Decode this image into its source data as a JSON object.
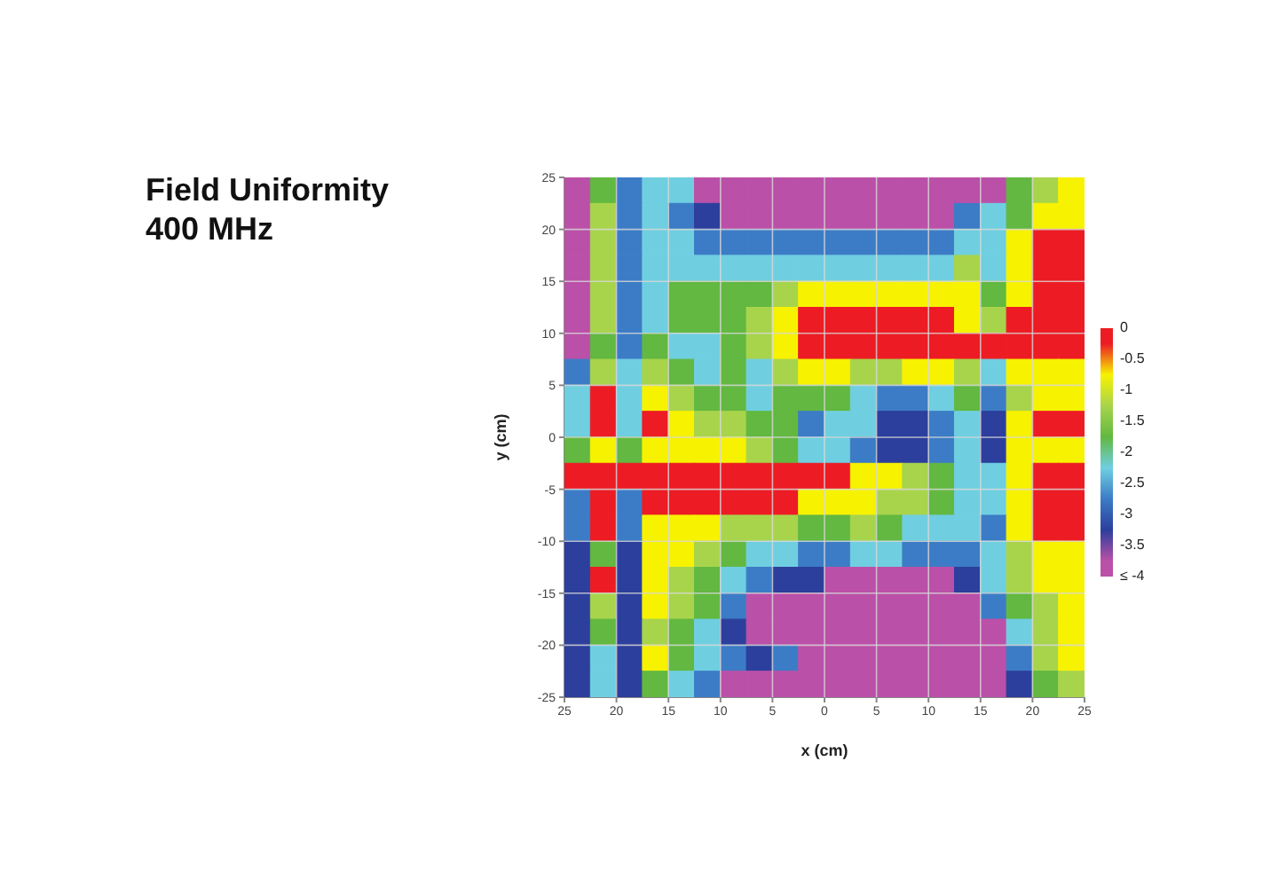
{
  "chart_data": {
    "type": "heatmap",
    "title": "Field Uniformity\n400 MHz",
    "xlabel": "x (cm)",
    "ylabel": "y (cm)",
    "x": [
      -23.75,
      -21.25,
      -18.75,
      -16.25,
      -13.75,
      -11.25,
      -8.75,
      -6.25,
      -3.75,
      -1.25,
      1.25,
      3.75,
      6.25,
      8.75,
      11.25,
      13.75,
      16.25,
      18.75,
      21.25,
      23.75
    ],
    "y": [
      23.75,
      21.25,
      18.75,
      16.25,
      13.75,
      11.25,
      8.75,
      6.25,
      3.75,
      1.25,
      -1.25,
      -3.75,
      -6.25,
      -8.75,
      -11.25,
      -13.75,
      -16.25,
      -18.75,
      -21.25,
      -23.75
    ],
    "cells": [
      [
        -3.75,
        -1.75,
        -2.75,
        -2.25,
        -2.25,
        -3.75,
        -3.75,
        -3.75,
        -3.75,
        -3.75,
        -3.75,
        -3.75,
        -3.75,
        -3.75,
        -3.75,
        -3.75,
        -3.75,
        -1.75,
        -1.25,
        -0.75
      ],
      [
        -3.75,
        -1.25,
        -2.75,
        -2.25,
        -2.75,
        -3.25,
        -3.75,
        -3.75,
        -3.75,
        -3.75,
        -3.75,
        -3.75,
        -3.75,
        -3.75,
        -3.75,
        -2.75,
        -2.25,
        -1.75,
        -0.75,
        -0.75
      ],
      [
        -3.75,
        -1.25,
        -2.75,
        -2.25,
        -2.25,
        -2.75,
        -2.75,
        -2.75,
        -2.75,
        -2.75,
        -2.75,
        -2.75,
        -2.75,
        -2.75,
        -2.75,
        -2.25,
        -2.25,
        -0.75,
        -0.25,
        -0.25
      ],
      [
        -3.75,
        -1.25,
        -2.75,
        -2.25,
        -2.25,
        -2.25,
        -2.25,
        -2.25,
        -2.25,
        -2.25,
        -2.25,
        -2.25,
        -2.25,
        -2.25,
        -2.25,
        -1.25,
        -2.25,
        -0.75,
        -0.25,
        -0.25
      ],
      [
        -3.75,
        -1.25,
        -2.75,
        -2.25,
        -1.75,
        -1.75,
        -1.75,
        -1.75,
        -1.25,
        -0.75,
        -0.75,
        -0.75,
        -0.75,
        -0.75,
        -0.75,
        -0.75,
        -1.75,
        -0.75,
        -0.25,
        -0.25
      ],
      [
        -3.75,
        -1.25,
        -2.75,
        -2.25,
        -1.75,
        -1.75,
        -1.75,
        -1.25,
        -0.75,
        -0.25,
        -0.25,
        -0.25,
        -0.25,
        -0.25,
        -0.25,
        -0.75,
        -1.25,
        -0.25,
        -0.25,
        -0.25
      ],
      [
        -3.75,
        -1.75,
        -2.75,
        -1.75,
        -2.25,
        -2.25,
        -1.75,
        -1.25,
        -0.75,
        -0.25,
        -0.25,
        -0.25,
        -0.25,
        -0.25,
        -0.25,
        -0.25,
        -0.25,
        -0.25,
        -0.25,
        -0.25
      ],
      [
        -2.75,
        -1.25,
        -2.25,
        -1.25,
        -1.75,
        -2.25,
        -1.75,
        -2.25,
        -1.25,
        -0.75,
        -0.75,
        -1.25,
        -1.25,
        -0.75,
        -0.75,
        -1.25,
        -2.25,
        -0.75,
        -0.75,
        -0.75
      ],
      [
        -2.25,
        -0.25,
        -2.25,
        -0.75,
        -1.25,
        -1.75,
        -1.75,
        -2.25,
        -1.75,
        -1.75,
        -1.75,
        -2.25,
        -2.75,
        -2.75,
        -2.25,
        -1.75,
        -2.75,
        -1.25,
        -0.75,
        -0.75
      ],
      [
        -2.25,
        -0.25,
        -2.25,
        -0.25,
        -0.75,
        -1.25,
        -1.25,
        -1.75,
        -1.75,
        -2.75,
        -2.25,
        -2.25,
        -3.25,
        -3.25,
        -2.75,
        -2.25,
        -3.25,
        -0.75,
        -0.25,
        -0.25
      ],
      [
        -1.75,
        -0.75,
        -1.75,
        -0.75,
        -0.75,
        -0.75,
        -0.75,
        -1.25,
        -1.75,
        -2.25,
        -2.25,
        -2.75,
        -3.25,
        -3.25,
        -2.75,
        -2.25,
        -3.25,
        -0.75,
        -0.75,
        -0.75
      ],
      [
        -0.25,
        -0.25,
        -0.25,
        -0.25,
        -0.25,
        -0.25,
        -0.25,
        -0.25,
        -0.25,
        -0.25,
        -0.25,
        -0.75,
        -0.75,
        -1.25,
        -1.75,
        -2.25,
        -2.25,
        -0.75,
        -0.25,
        -0.25
      ],
      [
        -2.75,
        -0.25,
        -2.75,
        -0.25,
        -0.25,
        -0.25,
        -0.25,
        -0.25,
        -0.25,
        -0.75,
        -0.75,
        -0.75,
        -1.25,
        -1.25,
        -1.75,
        -2.25,
        -2.25,
        -0.75,
        -0.25,
        -0.25
      ],
      [
        -2.75,
        -0.25,
        -2.75,
        -0.75,
        -0.75,
        -0.75,
        -1.25,
        -1.25,
        -1.25,
        -1.75,
        -1.75,
        -1.25,
        -1.75,
        -2.25,
        -2.25,
        -2.25,
        -2.75,
        -0.75,
        -0.25,
        -0.25
      ],
      [
        -3.25,
        -1.75,
        -3.25,
        -0.75,
        -0.75,
        -1.25,
        -1.75,
        -2.25,
        -2.25,
        -2.75,
        -2.75,
        -2.25,
        -2.25,
        -2.75,
        -2.75,
        -2.75,
        -2.25,
        -1.25,
        -0.75,
        -0.75
      ],
      [
        -3.25,
        -0.25,
        -3.25,
        -0.75,
        -1.25,
        -1.75,
        -2.25,
        -2.75,
        -3.25,
        -3.25,
        -3.75,
        -3.75,
        -3.75,
        -3.75,
        -3.75,
        -3.25,
        -2.25,
        -1.25,
        -0.75,
        -0.75
      ],
      [
        -3.25,
        -1.25,
        -3.25,
        -0.75,
        -1.25,
        -1.75,
        -2.75,
        -3.75,
        -3.75,
        -3.75,
        -3.75,
        -3.75,
        -3.75,
        -3.75,
        -3.75,
        -3.75,
        -2.75,
        -1.75,
        -1.25,
        -0.75
      ],
      [
        -3.25,
        -1.75,
        -3.25,
        -1.25,
        -1.75,
        -2.25,
        -3.25,
        -3.75,
        -3.75,
        -3.75,
        -3.75,
        -3.75,
        -3.75,
        -3.75,
        -3.75,
        -3.75,
        -3.75,
        -2.25,
        -1.25,
        -0.75
      ],
      [
        -3.25,
        -2.25,
        -3.25,
        -0.75,
        -1.75,
        -2.25,
        -2.75,
        -3.25,
        -2.75,
        -3.75,
        -3.75,
        -3.75,
        -3.75,
        -3.75,
        -3.75,
        -3.75,
        -3.75,
        -2.75,
        -1.25,
        -0.75
      ],
      [
        -3.25,
        -2.25,
        -3.25,
        -1.75,
        -2.25,
        -2.75,
        -3.75,
        -3.75,
        -3.75,
        -3.75,
        -3.75,
        -3.75,
        -3.75,
        -3.75,
        -3.75,
        -3.75,
        -3.75,
        -3.25,
        -1.75,
        -1.25
      ]
    ],
    "colors": [
      "#ed1c24",
      "#f7f200",
      "#a8d44c",
      "#62b840",
      "#6fcfe0",
      "#3c7cc6",
      "#2c3f9c",
      "#bb50a8"
    ],
    "clim": [
      -4,
      0
    ],
    "cticks": [
      0,
      -0.5,
      -1,
      -1.5,
      -2,
      -2.5,
      -3,
      -3.5,
      {
        "value": -4,
        "label": "≤ -4"
      }
    ],
    "xlim": [
      -25,
      25
    ],
    "xticks": [
      {
        "value": -25,
        "label": "25"
      },
      {
        "value": -20,
        "label": "20"
      },
      {
        "value": -15,
        "label": "15"
      },
      {
        "value": -10,
        "label": "10"
      },
      {
        "value": -5,
        "label": "5"
      },
      0,
      5,
      10,
      15,
      20,
      25
    ],
    "ylim": [
      -25,
      25
    ],
    "yticks": [
      -25,
      -20,
      -15,
      -10,
      -5,
      0,
      5,
      10,
      15,
      20,
      25
    ],
    "grid": true
  }
}
